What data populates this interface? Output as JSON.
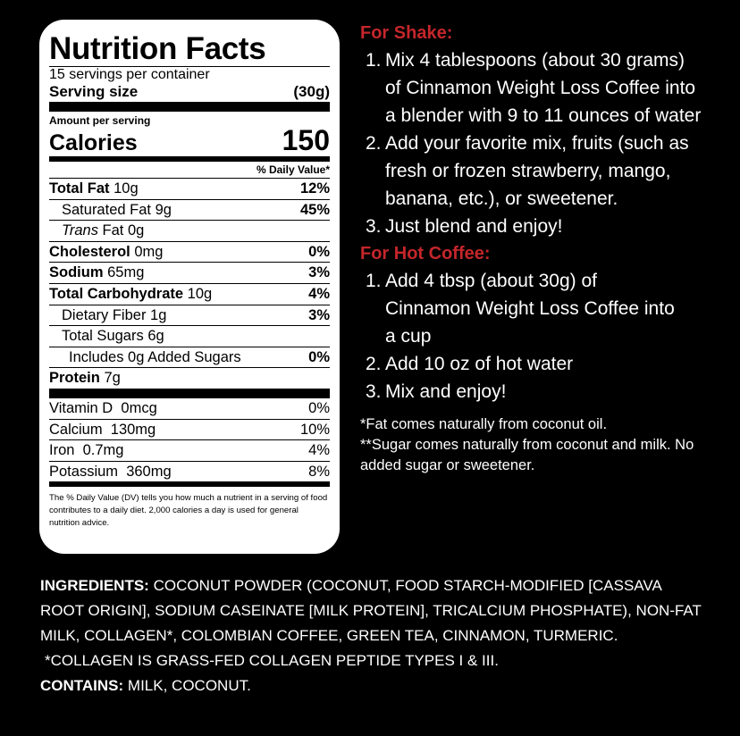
{
  "nutrition": {
    "title": "Nutrition Facts",
    "servings": "15 servings per container",
    "serving_size_label": "Serving size",
    "serving_size": "(30g)",
    "amount_per_serving": "Amount per serving",
    "calories_label": "Calories",
    "calories": "150",
    "dv_header": "% Daily Value*",
    "rows": [
      {
        "name": "Total Fat",
        "amount": "10g",
        "dv": "12%"
      },
      {
        "name": "Saturated Fat",
        "amount": "9g",
        "dv": "45%"
      },
      {
        "name_italic": "Trans",
        "name": "Fat",
        "amount": "0g"
      },
      {
        "name": "Cholesterol",
        "amount": "0mg",
        "dv": "0%"
      },
      {
        "name": "Sodium",
        "amount": "65mg",
        "dv": "3%"
      },
      {
        "name": "Total Carbohydrate",
        "amount": "10g",
        "dv": "4%"
      },
      {
        "name": "Dietary Fiber",
        "amount": "1g",
        "dv": "3%"
      },
      {
        "name": "Total Sugars",
        "amount": "6g"
      },
      {
        "name": "Includes 0g Added Sugars",
        "dv": "0%"
      },
      {
        "name": "Protein",
        "amount": "7g"
      }
    ],
    "vitamins": [
      {
        "name": "Vitamin D",
        "amount": "0mcg",
        "dv": "0%"
      },
      {
        "name": "Calcium",
        "amount": "130mg",
        "dv": "10%"
      },
      {
        "name": "Iron",
        "amount": "0.7mg",
        "dv": "4%"
      },
      {
        "name": "Potassium",
        "amount": "360mg",
        "dv": "8%"
      }
    ],
    "footnote": "The % Daily Value (DV) tells you how much a nutrient in a serving of food contributes to a daily diet. 2,000 calories a day is used for general nutrition advice."
  },
  "shake": {
    "heading": "For Shake:",
    "steps": [
      {
        "number": "1.",
        "text": "Mix 4 tablespoons (about 30 grams) of Cinnamon Weight Loss Coffee into a blender with 9 to 11 ounces of water"
      },
      {
        "number": "2.",
        "text": "Add your favorite mix, fruits (such as fresh or frozen strawberry, mango, banana, etc.), or sweetener."
      },
      {
        "number": "3.",
        "text": "Just blend and enjoy!"
      }
    ]
  },
  "hot_coffee": {
    "heading": "For Hot Coffee:",
    "steps": [
      {
        "number": "1.",
        "text": "Add 4 tbsp (about 30g) of Cinnamon Weight Loss Coffee into a cup"
      },
      {
        "number": "2.",
        "text": "Add 10 oz of hot water"
      },
      {
        "number": "3.",
        "text": "Mix and enjoy!"
      }
    ]
  },
  "notes": [
    "*Fat comes naturally from coconut oil.",
    "**Sugar comes naturally from coconut and milk. No added sugar or sweetener."
  ],
  "ingredients": {
    "label": "INGREDIENTS:",
    "text": "COCONUT POWDER (COCONUT, FOOD STARCH-MODIFIED [CASSAVA ROOT ORIGIN], SODIUM CASEINATE [MILK PROTEIN], TRICALCIUM PHOSPHATE), NON-FAT MILK, COLLAGEN*, COLOMBIAN COFFEE, GREEN TEA, CINNAMON, TURMERIC."
  },
  "collagen_note": "*COLLAGEN IS GRASS-FED COLLAGEN PEPTIDE TYPES I & III.",
  "contains": {
    "label": "CONTAINS:",
    "text": "MILK, COCONUT."
  }
}
